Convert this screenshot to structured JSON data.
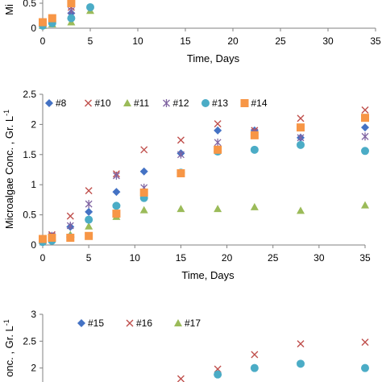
{
  "colors": {
    "#8": "#4472c4",
    "#10": "#c0504d",
    "#11": "#9bbb59",
    "#12": "#8064a2",
    "#13": "#4bacc6",
    "#14": "#f79646",
    "#15": "#4472c4",
    "#16": "#c0504d",
    "#17": "#9bbb59"
  },
  "chart_data": [
    {
      "type": "scatter",
      "panel": "top",
      "xlabel": "Time, Days",
      "ylabel": "Mi",
      "xlim": [
        0,
        35
      ],
      "ylim": [
        0,
        2.5
      ],
      "xticks": [
        "0",
        "5",
        "10",
        "15",
        "20",
        "25",
        "30",
        "35"
      ],
      "yticks": [
        "0",
        "0.5"
      ],
      "series": [
        {
          "key": "#8",
          "marker": "diamond",
          "x": [
            0,
            1,
            3
          ],
          "y": [
            0.08,
            0.14,
            0.3
          ]
        },
        {
          "key": "#10",
          "marker": "x",
          "x": [
            0,
            1,
            3
          ],
          "y": [
            0.1,
            0.2,
            0.42
          ]
        },
        {
          "key": "#11",
          "marker": "triangle",
          "x": [
            0,
            1,
            3,
            5
          ],
          "y": [
            0.05,
            0.08,
            0.12,
            0.35
          ]
        },
        {
          "key": "#12",
          "marker": "star",
          "x": [
            0,
            1,
            3
          ],
          "y": [
            0.1,
            0.15,
            0.35
          ]
        },
        {
          "key": "#13",
          "marker": "circle",
          "x": [
            0,
            1,
            3,
            5
          ],
          "y": [
            0.05,
            0.1,
            0.2,
            0.42
          ]
        },
        {
          "key": "#14",
          "marker": "square",
          "x": [
            0,
            1,
            3
          ],
          "y": [
            0.12,
            0.2,
            0.5
          ]
        }
      ]
    },
    {
      "type": "scatter",
      "panel": "middle",
      "xlabel": "Time, Days",
      "ylabel": "Microalgae Conc. , Gr. L",
      "ylabel_sup": "-1",
      "xlim": [
        0,
        35
      ],
      "ylim": [
        0,
        2.5
      ],
      "xticks": [
        "0",
        "5",
        "10",
        "15",
        "20",
        "25",
        "30",
        "35"
      ],
      "yticks": [
        "0",
        "0.5",
        "1",
        "1.5",
        "2",
        "2.5"
      ],
      "legend": [
        "#8",
        "#10",
        "#11",
        "#12",
        "#13",
        "#14"
      ],
      "series": [
        {
          "key": "#8",
          "marker": "diamond",
          "x": [
            0,
            1,
            3,
            5,
            8,
            11,
            15,
            19,
            23,
            28,
            35
          ],
          "y": [
            0.1,
            0.15,
            0.3,
            0.55,
            0.88,
            1.22,
            1.52,
            1.9,
            1.9,
            1.78,
            1.95
          ]
        },
        {
          "key": "#10",
          "marker": "x",
          "x": [
            0,
            1,
            3,
            5,
            8,
            11,
            15,
            19,
            23,
            28,
            35
          ],
          "y": [
            0.1,
            0.17,
            0.48,
            0.9,
            1.18,
            1.58,
            1.74,
            2.01,
            1.9,
            2.1,
            2.24
          ]
        },
        {
          "key": "#11",
          "marker": "triangle",
          "x": [
            0,
            1,
            3,
            5,
            8,
            11,
            15,
            19,
            23,
            28,
            35
          ],
          "y": [
            0.07,
            0.1,
            0.17,
            0.31,
            0.47,
            0.58,
            0.6,
            0.6,
            0.63,
            0.57,
            0.66
          ]
        },
        {
          "key": "#12",
          "marker": "star",
          "x": [
            0,
            1,
            3,
            5,
            8,
            11,
            15,
            19,
            23,
            28,
            35
          ],
          "y": [
            0.1,
            0.15,
            0.32,
            0.68,
            1.15,
            0.95,
            1.5,
            1.7,
            1.87,
            1.78,
            1.8
          ]
        },
        {
          "key": "#13",
          "marker": "circle",
          "x": [
            0,
            1,
            3,
            5,
            8,
            11,
            15,
            19,
            23,
            28,
            35
          ],
          "y": [
            0.05,
            0.07,
            0.13,
            0.42,
            0.65,
            0.78,
            1.2,
            1.55,
            1.58,
            1.66,
            1.56
          ]
        },
        {
          "key": "#14",
          "marker": "square",
          "x": [
            0,
            1,
            3,
            5,
            8,
            11,
            15,
            19,
            23,
            28,
            35
          ],
          "y": [
            0.1,
            0.12,
            0.12,
            0.15,
            0.52,
            0.87,
            1.19,
            1.58,
            1.82,
            1.95,
            2.11
          ]
        }
      ]
    },
    {
      "type": "scatter",
      "panel": "bottom",
      "xlabel": "",
      "ylabel": "onc. , Gr. L",
      "ylabel_sup": "-1",
      "xlim": [
        0,
        35
      ],
      "ylim": [
        0,
        3
      ],
      "yticks": [
        "2",
        "2.5",
        "3"
      ],
      "legend": [
        "#15",
        "#16",
        "#17"
      ],
      "series": [
        {
          "key": "#15",
          "marker": "diamond",
          "x": [],
          "y": []
        },
        {
          "key": "#16",
          "marker": "x",
          "x": [
            15,
            19,
            23,
            28,
            35
          ],
          "y": [
            1.8,
            1.98,
            2.25,
            2.45,
            2.48
          ]
        },
        {
          "key": "#17",
          "marker": "triangle",
          "x": [],
          "y": []
        },
        {
          "key": "#13",
          "marker": "circle",
          "x": [
            19,
            23,
            28,
            35
          ],
          "y": [
            1.88,
            2.0,
            2.08,
            2.0
          ]
        }
      ]
    }
  ]
}
